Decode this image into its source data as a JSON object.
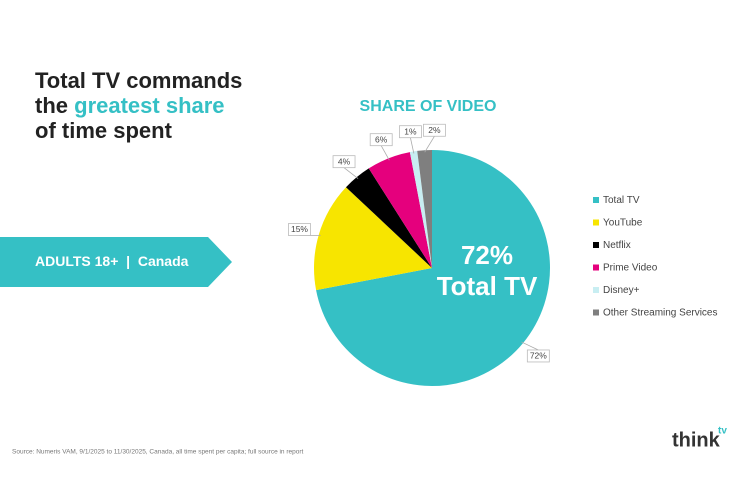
{
  "headline": {
    "line1": "Total TV commands",
    "line2_prefix": "the",
    "line2_highlight": "greatest share",
    "line3": "of time spent"
  },
  "banner": {
    "audience": "ADULTS 18+",
    "separator": "|",
    "region": "Canada"
  },
  "source": "Source: Numeris VAM, 9/1/2025  to 11/30/2025, Canada, all time spent per capita; full source in report",
  "logo": {
    "word": "think",
    "superscript": "tv"
  },
  "chart_data": {
    "type": "pie",
    "title": "SHARE OF VIDEO",
    "categories": [
      "Total TV",
      "YouTube",
      "Netflix",
      "Prime Video",
      "Disney+",
      "Other Streaming Services"
    ],
    "values": [
      72,
      15,
      4,
      6,
      1,
      2
    ],
    "value_labels": [
      "72%",
      "15%",
      "4%",
      "6%",
      "1%",
      "2%"
    ],
    "colors": [
      "#35c0c5",
      "#f7e500",
      "#000000",
      "#e5007d",
      "#c8eef2",
      "#7f7f7f"
    ],
    "legend": "right"
  }
}
